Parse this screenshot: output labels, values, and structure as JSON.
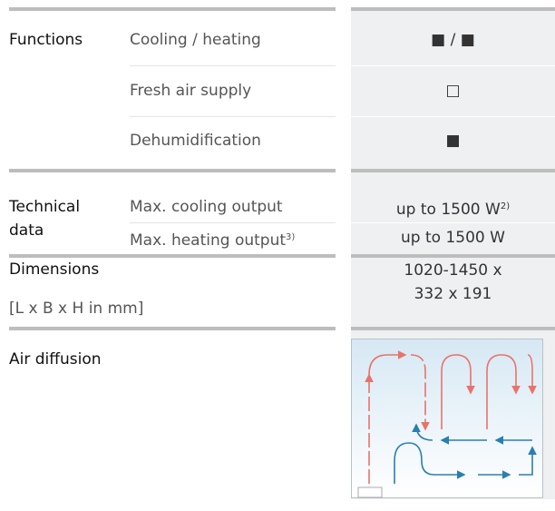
{
  "sections": [
    {
      "label": "Functions",
      "rows": [
        {
          "feature": "Cooling / heating",
          "value": "■ / ■"
        },
        {
          "feature": "Fresh air supply",
          "value": "□"
        },
        {
          "feature": "Dehumidification",
          "value": "■"
        }
      ]
    },
    {
      "label": "Technical data",
      "rows": [
        {
          "feature": "Max. cooling output",
          "value": "up to 1500 W",
          "value_note": "2)"
        },
        {
          "feature": "Max. heating output",
          "feature_note": "3)",
          "value": "up to 1500 W"
        }
      ]
    },
    {
      "label": "Dimensions",
      "sublabel": "[L x B x H in mm]",
      "value_lines": [
        "1020-1450 x",
        "332 x 191"
      ]
    },
    {
      "label": "Air diffusion"
    }
  ]
}
